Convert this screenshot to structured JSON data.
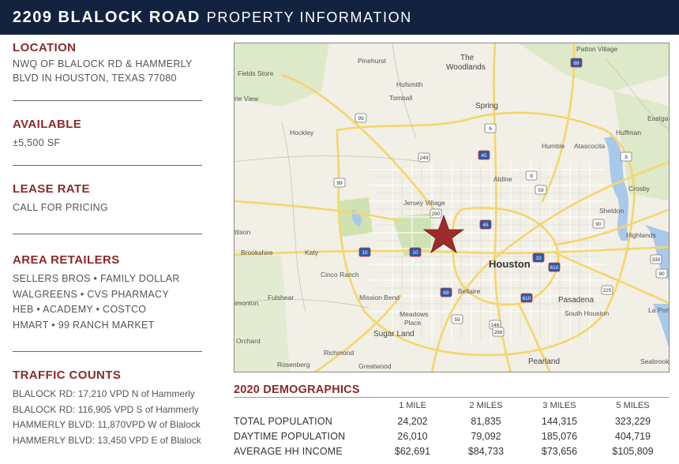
{
  "header": {
    "address": "2209 BLALOCK ROAD",
    "subtitle": "PROPERTY INFORMATION"
  },
  "location": {
    "title": "LOCATION",
    "line1": "NWQ OF BLALOCK RD  & HAMMERLY",
    "line2": "BLVD IN HOUSTON, TEXAS 77080"
  },
  "available": {
    "title": "AVAILABLE",
    "value": "±5,500 SF"
  },
  "lease_rate": {
    "title": "LEASE RATE",
    "value": "CALL FOR PRICING"
  },
  "area_retailers": {
    "title": "AREA RETAILERS",
    "lines": [
      "SELLERS BROS  •  FAMILY DOLLAR",
      "WALGREENS  •  CVS PHARMACY",
      "HEB  •  ACADEMY  •  COSTCO",
      "HMART  •  99 RANCH MARKET"
    ]
  },
  "traffic_counts": {
    "title": "TRAFFIC COUNTS",
    "lines": [
      "BLALOCK RD: 17,210 VPD N of Hammerly",
      "BLALOCK RD: 116,905 VPD S of Hammerly",
      "HAMMERLY BLVD: 11,870VPD W of Blalock",
      "HAMMERLY BLVD: 13,450 VPD E of Blalock"
    ]
  },
  "map": {
    "labels": {
      "patton_village": "Patton Village",
      "pinehurst": "Pinehurst",
      "the": "The",
      "woodlands": "Woodlands",
      "fields_store": "Fields Store",
      "hufsmith": "Hufsmith",
      "tomball": "Tomball",
      "spring": "Spring",
      "river_view": "rie View",
      "eastgate": "Eastga",
      "huffman": "Huffman",
      "hockley": "Hockley",
      "humble": "Humble",
      "atascocita": "Atascocita",
      "aldine": "Aldine",
      "crosby": "Crosby",
      "jersey_village": "Jersey Village",
      "sheldon": "Sheldon",
      "mattison": "ttison",
      "highlands": "Highlands",
      "brookshire": "Brookshire",
      "katy": "Katy",
      "houston": "Houston",
      "cinco_ranch": "Cinco Ranch",
      "fulshear": "Fulshear",
      "mission_bend": "Mission Bend",
      "bellaire": "Bellaire",
      "pasadena": "Pasadena",
      "simonton": "imonton",
      "meadows_place": "Meadows",
      "meadows_place2": "Place",
      "south_houston": "South Houston",
      "la_porte": "La Port",
      "sugar_land": "Sugar Land",
      "orchard": "Orchard",
      "richmond": "Richmond",
      "pearland": "Pearland",
      "rosenberg": "Rosenberg",
      "greatwood": "Greatwood",
      "seabrook": "Seabrook"
    },
    "shields": [
      "69",
      "99",
      "249",
      "45",
      "99",
      "290",
      "10",
      "10",
      "10",
      "610",
      "69",
      "610",
      "45",
      "59",
      "8",
      "8",
      "59",
      "6",
      "90",
      "146",
      "225",
      "330",
      "288",
      "90"
    ]
  },
  "demographics": {
    "title": "2020 DEMOGRAPHICS",
    "columns": [
      "1 MILE",
      "2 MILES",
      "3 MILES",
      "5 MILES"
    ],
    "rows": [
      {
        "label": "TOTAL POPULATION",
        "values": [
          "24,202",
          "81,835",
          "144,315",
          "323,229"
        ]
      },
      {
        "label": "DAYTIME POPULATION",
        "values": [
          "26,010",
          "79,092",
          "185,076",
          "404,719"
        ]
      },
      {
        "label": "AVERAGE HH INCOME",
        "values": [
          "$62,691",
          "$84,733",
          "$73,656",
          "$105,809"
        ]
      }
    ]
  },
  "colors": {
    "header_bg": "#13233f",
    "accent": "#8a2a2a",
    "star": "#9e2b2b"
  }
}
